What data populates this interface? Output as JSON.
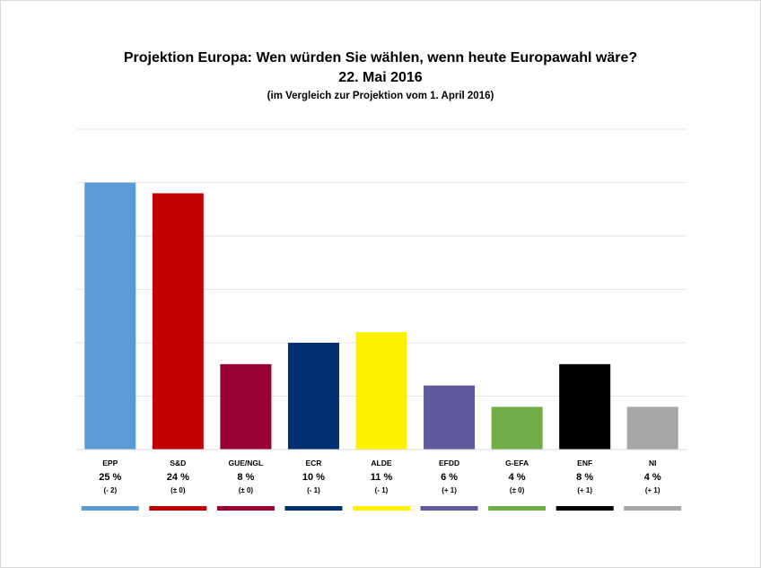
{
  "title": {
    "line1": "Projektion Europa: Wen würden Sie wählen,  wenn heute Europawahl wäre?",
    "line2": "22. Mai 2016",
    "line3": "(im Vergleich zur Projektion vom 1. April 2016)"
  },
  "chart_data": {
    "type": "bar",
    "categories": [
      "EPP",
      "S&D",
      "GUE/NGL",
      "ECR",
      "ALDE",
      "EFDD",
      "G-EFA",
      "ENF",
      "NI"
    ],
    "values": [
      25,
      24,
      8,
      10,
      11,
      6,
      4,
      8,
      4
    ],
    "plotted_values": [
      25,
      24,
      8,
      10,
      11,
      6,
      4,
      8,
      4
    ],
    "value_labels": [
      "25 %",
      "24 %",
      "8 %",
      "10 %",
      "11 %",
      "6 %",
      "4 %",
      "8 %",
      "4 %"
    ],
    "change_labels": [
      "(- 2)",
      "(± 0)",
      "(± 0)",
      "(- 1)",
      "(- 1)",
      "(+ 1)",
      "(± 0)",
      "(+ 1)",
      "(+ 1)"
    ],
    "colors": [
      "#5B9BD5",
      "#C00000",
      "#990033",
      "#003070",
      "#FFF200",
      "#5F5A9E",
      "#70AD47",
      "#000000",
      "#A6A6A6"
    ],
    "ylim": [
      0,
      30
    ],
    "grid": true,
    "legend": "none"
  }
}
